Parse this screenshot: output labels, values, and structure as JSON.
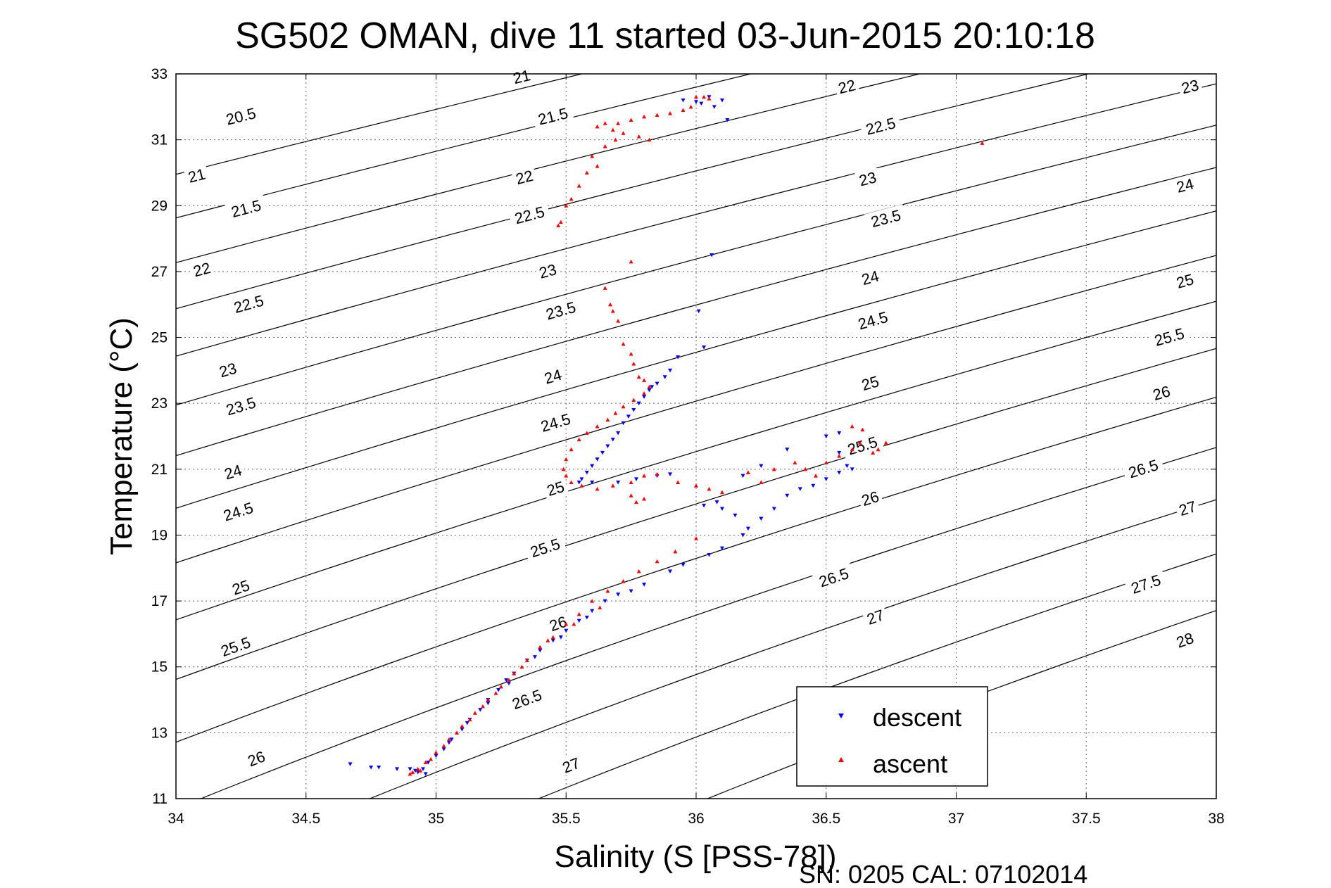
{
  "chart_data": {
    "type": "scatter",
    "title": "SG502 OMAN, dive 11 started 03-Jun-2015 20:10:18",
    "xlabel": "Salinity (S [PSS-78])",
    "ylabel": "Temperature (°C)",
    "footer": "SN: 0205  CAL: 07102014",
    "xlim": [
      34,
      38
    ],
    "ylim": [
      11,
      33
    ],
    "x_ticks": [
      "34",
      "34.5",
      "35",
      "35.5",
      "36",
      "36.5",
      "37",
      "37.5",
      "38"
    ],
    "y_ticks": [
      "11",
      "13",
      "15",
      "17",
      "19",
      "21",
      "23",
      "25",
      "27",
      "29",
      "31",
      "33"
    ],
    "grid": true,
    "legend_position": "bottom-right",
    "contours": {
      "levels": [
        20.5,
        21,
        21.5,
        22,
        22.5,
        23,
        23.5,
        24,
        24.5,
        25,
        25.5,
        26,
        26.5,
        27,
        27.5,
        28
      ],
      "color": "#000000",
      "labels": [
        {
          "text": "20.5",
          "s": 34.25,
          "t": 31.7
        },
        {
          "text": "21",
          "s": 35.33,
          "t": 32.9
        },
        {
          "text": "21",
          "s": 34.08,
          "t": 29.9
        },
        {
          "text": "21.5",
          "s": 35.45,
          "t": 31.7
        },
        {
          "text": "21.5",
          "s": 34.27,
          "t": 28.9
        },
        {
          "text": "22",
          "s": 36.58,
          "t": 32.6
        },
        {
          "text": "22",
          "s": 34.1,
          "t": 27.05
        },
        {
          "text": "22",
          "s": 35.34,
          "t": 29.85
        },
        {
          "text": "22.5",
          "s": 36.71,
          "t": 31.4
        },
        {
          "text": "22.5",
          "s": 34.28,
          "t": 26.0
        },
        {
          "text": "22.5",
          "s": 35.36,
          "t": 28.7
        },
        {
          "text": "23",
          "s": 37.9,
          "t": 32.6
        },
        {
          "text": "23",
          "s": 36.66,
          "t": 29.8
        },
        {
          "text": "23",
          "s": 34.2,
          "t": 24.0
        },
        {
          "text": "23",
          "s": 35.43,
          "t": 27.0
        },
        {
          "text": "23.5",
          "s": 36.73,
          "t": 28.6
        },
        {
          "text": "23.5",
          "s": 34.25,
          "t": 22.9
        },
        {
          "text": "23.5",
          "s": 35.48,
          "t": 25.8
        },
        {
          "text": "24",
          "s": 37.88,
          "t": 29.6
        },
        {
          "text": "24",
          "s": 36.67,
          "t": 26.8
        },
        {
          "text": "24",
          "s": 34.22,
          "t": 20.9
        },
        {
          "text": "24",
          "s": 35.45,
          "t": 23.8
        },
        {
          "text": "24.5",
          "s": 36.68,
          "t": 25.5
        },
        {
          "text": "24.5",
          "s": 34.24,
          "t": 19.7
        },
        {
          "text": "24.5",
          "s": 35.46,
          "t": 22.4
        },
        {
          "text": "25",
          "s": 37.88,
          "t": 26.7
        },
        {
          "text": "25",
          "s": 36.67,
          "t": 23.6
        },
        {
          "text": "25",
          "s": 34.25,
          "t": 17.4
        },
        {
          "text": "25",
          "s": 35.46,
          "t": 20.4
        },
        {
          "text": "25.5",
          "s": 37.82,
          "t": 25.0
        },
        {
          "text": "25.5",
          "s": 36.64,
          "t": 21.7
        },
        {
          "text": "25.5",
          "s": 34.23,
          "t": 15.6
        },
        {
          "text": "25.5",
          "s": 35.42,
          "t": 18.6
        },
        {
          "text": "26",
          "s": 37.79,
          "t": 23.3
        },
        {
          "text": "26",
          "s": 36.67,
          "t": 20.1
        },
        {
          "text": "26",
          "s": 34.31,
          "t": 12.2
        },
        {
          "text": "26",
          "s": 35.47,
          "t": 16.3
        },
        {
          "text": "26.5",
          "s": 37.72,
          "t": 21.0
        },
        {
          "text": "26.5",
          "s": 36.53,
          "t": 17.7
        },
        {
          "text": "26.5",
          "s": 35.35,
          "t": 14.0
        },
        {
          "text": "27",
          "s": 37.89,
          "t": 19.8
        },
        {
          "text": "27",
          "s": 36.69,
          "t": 16.5
        },
        {
          "text": "27",
          "s": 35.52,
          "t": 12.0
        },
        {
          "text": "27.5",
          "s": 37.73,
          "t": 17.5
        },
        {
          "text": "28",
          "s": 37.88,
          "t": 15.8
        }
      ]
    },
    "series": [
      {
        "name": "descent",
        "color": "#0000ff",
        "marker": "triangle-down",
        "points": [
          [
            35.95,
            32.2
          ],
          [
            36.0,
            32.15
          ],
          [
            36.05,
            32.3
          ],
          [
            36.02,
            32.1
          ],
          [
            36.07,
            32.0
          ],
          [
            36.1,
            32.2
          ],
          [
            36.12,
            31.6
          ],
          [
            36.06,
            27.5
          ],
          [
            36.01,
            25.8
          ],
          [
            36.03,
            24.7
          ],
          [
            35.93,
            24.4
          ],
          [
            35.9,
            24.0
          ],
          [
            35.88,
            23.8
          ],
          [
            35.85,
            23.6
          ],
          [
            35.83,
            23.5
          ],
          [
            35.82,
            23.4
          ],
          [
            35.8,
            23.2
          ],
          [
            35.78,
            23.0
          ],
          [
            35.76,
            22.8
          ],
          [
            35.74,
            22.6
          ],
          [
            35.72,
            22.4
          ],
          [
            35.7,
            22.1
          ],
          [
            35.68,
            21.9
          ],
          [
            35.66,
            21.7
          ],
          [
            35.64,
            21.5
          ],
          [
            35.62,
            21.3
          ],
          [
            35.6,
            21.1
          ],
          [
            35.58,
            20.9
          ],
          [
            35.56,
            20.7
          ],
          [
            35.55,
            20.6
          ],
          [
            35.6,
            20.6
          ],
          [
            35.7,
            20.6
          ],
          [
            35.77,
            20.7
          ],
          [
            35.85,
            20.8
          ],
          [
            35.9,
            20.85
          ],
          [
            36.03,
            19.9
          ],
          [
            36.08,
            20.0
          ],
          [
            36.1,
            19.8
          ],
          [
            36.15,
            19.6
          ],
          [
            36.18,
            19.0
          ],
          [
            36.2,
            19.2
          ],
          [
            36.25,
            19.5
          ],
          [
            36.3,
            19.8
          ],
          [
            36.35,
            20.2
          ],
          [
            36.4,
            20.4
          ],
          [
            36.45,
            20.5
          ],
          [
            36.5,
            20.7
          ],
          [
            36.55,
            20.9
          ],
          [
            36.58,
            21.1
          ],
          [
            36.6,
            21.0
          ],
          [
            36.55,
            21.5
          ],
          [
            36.5,
            22.0
          ],
          [
            36.55,
            22.1
          ],
          [
            36.35,
            21.6
          ],
          [
            36.25,
            21.1
          ],
          [
            36.18,
            20.8
          ],
          [
            36.1,
            18.6
          ],
          [
            36.05,
            18.4
          ],
          [
            35.95,
            18.1
          ],
          [
            35.9,
            17.9
          ],
          [
            35.8,
            17.5
          ],
          [
            35.75,
            17.3
          ],
          [
            35.7,
            17.2
          ],
          [
            35.65,
            17.0
          ],
          [
            35.6,
            16.7
          ],
          [
            35.55,
            16.4
          ],
          [
            35.5,
            16.1
          ],
          [
            35.45,
            15.8
          ],
          [
            35.4,
            15.5
          ],
          [
            35.35,
            15.2
          ],
          [
            35.3,
            14.8
          ],
          [
            35.27,
            14.6
          ],
          [
            35.24,
            14.3
          ],
          [
            35.2,
            14.0
          ],
          [
            35.17,
            13.7
          ],
          [
            35.13,
            13.4
          ],
          [
            35.1,
            13.1
          ],
          [
            35.06,
            12.8
          ],
          [
            35.03,
            12.5
          ],
          [
            35.0,
            12.3
          ],
          [
            34.97,
            12.1
          ],
          [
            34.95,
            11.9
          ],
          [
            34.93,
            11.8
          ],
          [
            34.96,
            11.75
          ],
          [
            34.92,
            11.85
          ],
          [
            34.9,
            11.9
          ],
          [
            34.85,
            11.9
          ],
          [
            34.78,
            11.95
          ],
          [
            34.75,
            11.95
          ],
          [
            34.67,
            12.05
          ],
          [
            35.05,
            12.7
          ],
          [
            35.12,
            13.3
          ],
          [
            35.2,
            13.9
          ],
          [
            35.28,
            14.5
          ],
          [
            35.38,
            15.3
          ],
          [
            35.48,
            15.9
          ],
          [
            35.58,
            16.5
          ]
        ]
      },
      {
        "name": "ascent",
        "color": "#ff0000",
        "marker": "triangle-up",
        "points": [
          [
            36.0,
            32.3
          ],
          [
            36.03,
            32.3
          ],
          [
            36.05,
            32.25
          ],
          [
            35.98,
            32.0
          ],
          [
            35.95,
            31.9
          ],
          [
            35.9,
            31.8
          ],
          [
            35.85,
            31.75
          ],
          [
            35.8,
            31.7
          ],
          [
            35.75,
            31.6
          ],
          [
            35.7,
            31.5
          ],
          [
            35.65,
            31.5
          ],
          [
            35.62,
            31.4
          ],
          [
            35.68,
            31.3
          ],
          [
            35.72,
            31.2
          ],
          [
            35.78,
            31.1
          ],
          [
            35.82,
            31.0
          ],
          [
            35.69,
            31.0
          ],
          [
            35.65,
            30.8
          ],
          [
            35.6,
            30.5
          ],
          [
            35.62,
            30.2
          ],
          [
            35.58,
            30.0
          ],
          [
            35.55,
            29.6
          ],
          [
            35.52,
            29.2
          ],
          [
            35.5,
            29.0
          ],
          [
            35.48,
            28.5
          ],
          [
            35.47,
            28.4
          ],
          [
            35.75,
            27.3
          ],
          [
            35.65,
            26.5
          ],
          [
            35.67,
            26.0
          ],
          [
            35.68,
            25.8
          ],
          [
            35.7,
            25.5
          ],
          [
            35.72,
            24.8
          ],
          [
            35.75,
            24.5
          ],
          [
            35.76,
            24.2
          ],
          [
            35.78,
            23.8
          ],
          [
            35.8,
            23.7
          ],
          [
            35.82,
            23.5
          ],
          [
            35.8,
            23.3
          ],
          [
            35.76,
            23.1
          ],
          [
            35.72,
            22.9
          ],
          [
            35.69,
            22.7
          ],
          [
            35.66,
            22.5
          ],
          [
            35.62,
            22.3
          ],
          [
            35.58,
            22.1
          ],
          [
            35.55,
            21.9
          ],
          [
            35.52,
            21.6
          ],
          [
            35.5,
            21.3
          ],
          [
            35.49,
            21.0
          ],
          [
            35.5,
            20.8
          ],
          [
            35.52,
            20.6
          ],
          [
            35.56,
            20.5
          ],
          [
            35.62,
            20.4
          ],
          [
            35.68,
            20.5
          ],
          [
            35.75,
            20.6
          ],
          [
            35.8,
            20.8
          ],
          [
            35.85,
            20.85
          ],
          [
            35.75,
            20.2
          ],
          [
            35.77,
            20.0
          ],
          [
            35.8,
            20.1
          ],
          [
            35.93,
            20.6
          ],
          [
            36.0,
            20.5
          ],
          [
            36.05,
            20.4
          ],
          [
            36.1,
            20.3
          ],
          [
            36.2,
            20.9
          ],
          [
            36.25,
            20.6
          ],
          [
            36.3,
            21.0
          ],
          [
            36.38,
            21.2
          ],
          [
            36.42,
            21.0
          ],
          [
            36.46,
            20.8
          ],
          [
            36.5,
            21.2
          ],
          [
            36.55,
            21.4
          ],
          [
            36.6,
            21.6
          ],
          [
            36.63,
            21.8
          ],
          [
            36.64,
            22.2
          ],
          [
            36.6,
            22.3
          ],
          [
            36.7,
            21.6
          ],
          [
            36.73,
            21.8
          ],
          [
            36.68,
            21.5
          ],
          [
            37.1,
            30.9
          ],
          [
            36.0,
            18.9
          ],
          [
            35.92,
            18.5
          ],
          [
            35.85,
            18.2
          ],
          [
            35.78,
            17.9
          ],
          [
            35.72,
            17.6
          ],
          [
            35.66,
            17.3
          ],
          [
            35.6,
            17.0
          ],
          [
            35.55,
            16.6
          ],
          [
            35.5,
            16.3
          ],
          [
            35.45,
            15.9
          ],
          [
            35.4,
            15.6
          ],
          [
            35.35,
            15.2
          ],
          [
            35.3,
            14.8
          ],
          [
            35.25,
            14.4
          ],
          [
            35.2,
            14.0
          ],
          [
            35.15,
            13.6
          ],
          [
            35.1,
            13.2
          ],
          [
            35.05,
            12.8
          ],
          [
            35.0,
            12.4
          ],
          [
            34.96,
            12.1
          ],
          [
            34.93,
            11.9
          ],
          [
            34.91,
            11.8
          ],
          [
            34.9,
            11.75
          ],
          [
            34.94,
            11.85
          ],
          [
            34.98,
            12.2
          ],
          [
            35.03,
            12.6
          ],
          [
            35.08,
            13.0
          ],
          [
            35.13,
            13.4
          ],
          [
            35.18,
            13.8
          ],
          [
            35.23,
            14.2
          ],
          [
            35.28,
            14.6
          ],
          [
            35.33,
            15.0
          ],
          [
            35.43,
            15.8
          ],
          [
            35.53,
            16.3
          ],
          [
            35.63,
            16.8
          ]
        ]
      }
    ]
  }
}
